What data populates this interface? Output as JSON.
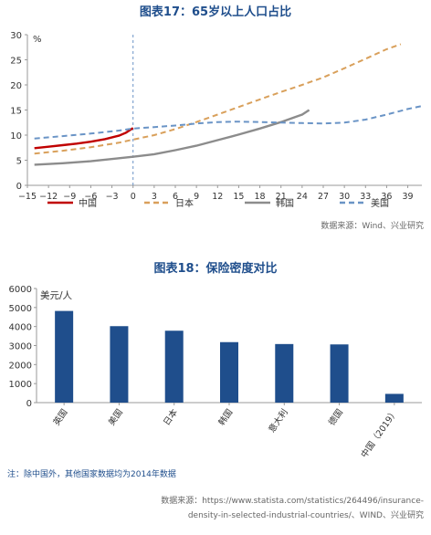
{
  "chart1": {
    "title": "图表17：65岁以上人口占比",
    "source": "数据来源：Wind、兴业研究"
  },
  "chart2": {
    "title": "图表18：保险密度对比",
    "note": "注：除中国外，其他国家数据均为2014年数据",
    "source_line1": "数据来源：https://www.statista.com/statistics/264496/insurance-",
    "source_line2": "density-in-selected-industrial-countries/、WIND、兴业研究"
  },
  "chart_data": [
    {
      "type": "line",
      "title": "图表17：65岁以上人口占比",
      "ylabel": "%",
      "xlim": [
        -15,
        41
      ],
      "ylim": [
        0,
        30
      ],
      "xticks": [
        -15,
        -12,
        -9,
        -6,
        -3,
        0,
        3,
        6,
        9,
        12,
        15,
        18,
        21,
        24,
        27,
        30,
        33,
        36,
        39
      ],
      "yticks": [
        0,
        5,
        10,
        15,
        20,
        25,
        30
      ],
      "vline_x": 0,
      "legend_position": "bottom",
      "grid": false,
      "series": [
        {
          "name": "中国",
          "color": "#c00000",
          "style": "solid",
          "x": [
            -14,
            -12,
            -10,
            -8,
            -6,
            -4,
            -2,
            -1,
            0
          ],
          "y": [
            7.4,
            7.7,
            8.0,
            8.3,
            8.7,
            9.2,
            9.9,
            10.5,
            11.4
          ]
        },
        {
          "name": "日本",
          "color": "#d9a05b",
          "style": "dashed",
          "x": [
            -14,
            -10,
            -6,
            -2,
            0,
            3,
            6,
            9,
            12,
            15,
            18,
            21,
            24,
            27,
            30,
            33,
            36,
            38
          ],
          "y": [
            6.3,
            6.9,
            7.6,
            8.5,
            9.1,
            10.0,
            11.2,
            12.6,
            14.1,
            15.6,
            17.1,
            18.6,
            20.0,
            21.5,
            23.3,
            25.2,
            27.1,
            28.1
          ]
        },
        {
          "name": "韩国",
          "color": "#8c8c8c",
          "style": "solid",
          "x": [
            -14,
            -10,
            -6,
            -2,
            0,
            3,
            6,
            9,
            12,
            15,
            18,
            21,
            24,
            25
          ],
          "y": [
            4.1,
            4.4,
            4.8,
            5.4,
            5.7,
            6.2,
            7.0,
            7.9,
            9.0,
            10.1,
            11.3,
            12.6,
            14.1,
            15.0
          ]
        },
        {
          "name": "美国",
          "color": "#6a94c6",
          "style": "dashed",
          "x": [
            -14,
            -10,
            -6,
            -2,
            0,
            3,
            6,
            9,
            12,
            15,
            18,
            21,
            24,
            27,
            30,
            33,
            36,
            39,
            41
          ],
          "y": [
            9.3,
            9.8,
            10.3,
            10.9,
            11.3,
            11.6,
            11.9,
            12.3,
            12.6,
            12.7,
            12.6,
            12.5,
            12.4,
            12.3,
            12.5,
            13.1,
            14.1,
            15.2,
            15.8
          ]
        }
      ]
    },
    {
      "type": "bar",
      "title": "图表18：保险密度对比",
      "ylabel": "美元/人",
      "ylim": [
        0,
        6000
      ],
      "yticks": [
        0,
        1000,
        2000,
        3000,
        4000,
        5000,
        6000
      ],
      "color": "#1f4e8c",
      "grid": false,
      "categories": [
        "英国",
        "美国",
        "日本",
        "韩国",
        "意大利",
        "德国",
        "中国（2019）"
      ],
      "values": [
        4820,
        4020,
        3780,
        3180,
        3080,
        3060,
        460
      ]
    }
  ]
}
